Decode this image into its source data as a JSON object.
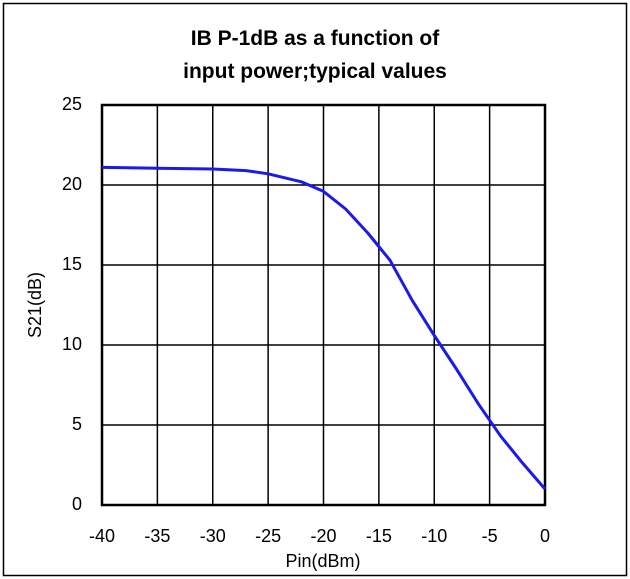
{
  "chart_data": {
    "type": "line",
    "title": "IB P-1dB as a function of input power;typical values",
    "x_label": "Pin(dBm)",
    "y_label": "S21(dB)",
    "x": [
      -40,
      -35,
      -30,
      -27,
      -25,
      -22,
      -20,
      -18,
      -16,
      -14,
      -12,
      -10,
      -8,
      -6,
      -5,
      -4,
      -2,
      0
    ],
    "series": [
      {
        "name": "S21",
        "color": "#1a1aeb",
        "values": [
          21.1,
          21.05,
          21.0,
          20.9,
          20.7,
          20.2,
          19.6,
          18.5,
          17.0,
          15.3,
          12.8,
          10.6,
          8.5,
          6.3,
          5.3,
          4.3,
          2.6,
          1.0
        ]
      }
    ],
    "xlim": [
      -40,
      0
    ],
    "xticks": [
      -40,
      -35,
      -30,
      -25,
      -20,
      -15,
      -10,
      -5,
      0
    ],
    "ylim": [
      0,
      25
    ],
    "yticks": [
      0,
      5,
      10,
      15,
      20,
      25
    ],
    "grid": true,
    "legend": false
  }
}
